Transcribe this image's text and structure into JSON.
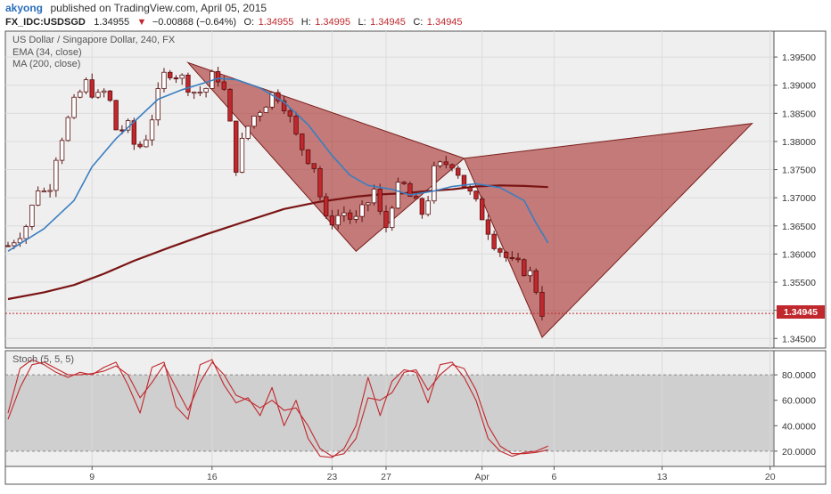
{
  "header": {
    "author": "akyong",
    "published": "published on TradingView.com, April 05, 2015",
    "symbol": "FX_IDC:USDSGD",
    "last": "1.34955",
    "change": "−0.00868 (−0.64%)",
    "o_label": "O:",
    "o_value": "1.34955",
    "h_label": "H:",
    "h_value": "1.34995",
    "l_label": "L:",
    "l_value": "1.34945",
    "c_label": "C:",
    "c_value": "1.34945"
  },
  "legend": {
    "title": "US Dollar / Singapore Dollar, 240, FX",
    "ema": "EMA (34, close)",
    "ma": "MA (200, close)",
    "stoch": "Stoch (5, 5, 5)"
  },
  "colors": {
    "bull": "#ffffff",
    "bear": "#c0282d",
    "wick": "#5a1010",
    "ema": "#3a7fc1",
    "ma": "#7a1414",
    "pattern_fill": "#a8322e",
    "stoch_k": "#c0282d",
    "stoch_d": "#c0282d",
    "last_price_bg": "#c0282d"
  },
  "chart_data": [
    {
      "type": "candlestick",
      "title": "US Dollar / Singapore Dollar, 240, FX",
      "x_tick_labels": [
        "9",
        "16",
        "23",
        "27",
        "Apr",
        "6",
        "13",
        "20"
      ],
      "y_ticks": [
        1.345,
        1.35,
        1.355,
        1.36,
        1.365,
        1.37,
        1.375,
        1.38,
        1.385,
        1.39,
        1.395
      ],
      "y_tick_labels": [
        "1.34500",
        "1.35000",
        "1.35500",
        "1.36000",
        "1.36500",
        "1.37000",
        "1.37500",
        "1.38000",
        "1.38500",
        "1.39000",
        "1.39500"
      ],
      "ylim": [
        1.3433,
        1.3996
      ],
      "last_price_label": "1.34945",
      "last_price": 1.34945,
      "grid": true,
      "ohlc_path": [
        1.3615,
        1.3635,
        1.3655,
        1.372,
        1.3705,
        1.379,
        1.3835,
        1.388,
        1.3905,
        1.3875,
        1.3892,
        1.3815,
        1.383,
        1.3782,
        1.3812,
        1.3872,
        1.393,
        1.392,
        1.3905,
        1.3885,
        1.3895,
        1.3925,
        1.388,
        1.3755,
        1.382,
        1.385,
        1.387,
        1.389,
        1.3865,
        1.381,
        1.378,
        1.3755,
        1.3655,
        1.3665,
        1.3675,
        1.3655,
        1.368,
        1.3715,
        1.3635,
        1.371,
        1.372,
        1.369,
        1.367,
        1.3745,
        1.376,
        1.3765,
        1.3725,
        1.3695,
        1.3665,
        1.3625,
        1.36,
        1.358,
        1.3575,
        1.356,
        1.3495
      ],
      "series": [
        {
          "name": "EMA (34, close)",
          "x": [
            0,
            6,
            11,
            14,
            18,
            22,
            25,
            29,
            33,
            35,
            38,
            42,
            46,
            50,
            54,
            57,
            60,
            64,
            67,
            71,
            74,
            78,
            82,
            86,
            88,
            90
          ],
          "values": [
            1.3605,
            1.3645,
            1.3695,
            1.3755,
            1.3805,
            1.3845,
            1.3875,
            1.3892,
            1.3905,
            1.3912,
            1.391,
            1.3895,
            1.387,
            1.383,
            1.3775,
            1.374,
            1.3722,
            1.3715,
            1.3705,
            1.3712,
            1.372,
            1.3725,
            1.3718,
            1.3695,
            1.3655,
            1.362
          ]
        },
        {
          "name": "MA (200, close)",
          "x": [
            0,
            6,
            11,
            16,
            21,
            27,
            33,
            39,
            46,
            52,
            58,
            62,
            66,
            70,
            74,
            78,
            82,
            86,
            90
          ],
          "values": [
            1.352,
            1.3532,
            1.3545,
            1.3565,
            1.3588,
            1.3612,
            1.3635,
            1.3656,
            1.368,
            1.3693,
            1.3702,
            1.3706,
            1.3708,
            1.3712,
            1.3715,
            1.372,
            1.3722,
            1.3721,
            1.3719
          ]
        }
      ],
      "harmonic_pattern": {
        "first": [
          {
            "x": 30,
            "y": 1.394
          },
          {
            "x": 58,
            "y": 1.3605
          },
          {
            "x": 76,
            "y": 1.377
          }
        ],
        "second": [
          {
            "x": 76,
            "y": 1.377
          },
          {
            "x": 89,
            "y": 1.3452
          },
          {
            "x": 124,
            "y": 1.3832
          }
        ]
      },
      "x_range_bars": [
        0,
        128
      ]
    },
    {
      "type": "line",
      "title": "Stoch (5, 5, 5)",
      "y_ticks": [
        20,
        40,
        60,
        80
      ],
      "y_tick_labels": [
        "20.0000",
        "40.0000",
        "60.0000",
        "80.0000"
      ],
      "ylim": [
        8,
        99
      ],
      "overbought": 80,
      "oversold": 20,
      "series": [
        {
          "name": "%K",
          "x": [
            0,
            2,
            4,
            6,
            8,
            10,
            12,
            14,
            16,
            18,
            20,
            22,
            24,
            26,
            28,
            30,
            32,
            34,
            36,
            38,
            40,
            42,
            44,
            46,
            48,
            50,
            52,
            54,
            56,
            58,
            60,
            62,
            64,
            66,
            68,
            70,
            72,
            74,
            76,
            78,
            80,
            82,
            84,
            86,
            88,
            90
          ],
          "values": [
            50,
            85,
            92,
            88,
            82,
            78,
            82,
            80,
            86,
            90,
            72,
            50,
            86,
            90,
            55,
            45,
            88,
            92,
            72,
            58,
            62,
            48,
            70,
            40,
            60,
            30,
            16,
            15,
            22,
            40,
            78,
            48,
            75,
            84,
            82,
            58,
            88,
            90,
            78,
            60,
            30,
            20,
            16,
            19,
            20,
            24
          ]
        },
        {
          "name": "%D",
          "x": [
            0,
            2,
            4,
            6,
            8,
            10,
            12,
            14,
            16,
            18,
            20,
            22,
            24,
            26,
            28,
            30,
            32,
            34,
            36,
            38,
            40,
            42,
            44,
            46,
            48,
            50,
            52,
            54,
            56,
            58,
            60,
            62,
            64,
            66,
            68,
            70,
            72,
            74,
            76,
            78,
            80,
            82,
            84,
            86,
            88,
            90
          ],
          "values": [
            45,
            70,
            88,
            90,
            85,
            80,
            80,
            81,
            83,
            87,
            80,
            62,
            74,
            88,
            70,
            52,
            74,
            90,
            80,
            64,
            60,
            54,
            60,
            52,
            54,
            40,
            22,
            16,
            18,
            30,
            62,
            60,
            66,
            82,
            84,
            68,
            80,
            88,
            85,
            68,
            40,
            24,
            18,
            18,
            19,
            21
          ]
        }
      ]
    }
  ]
}
